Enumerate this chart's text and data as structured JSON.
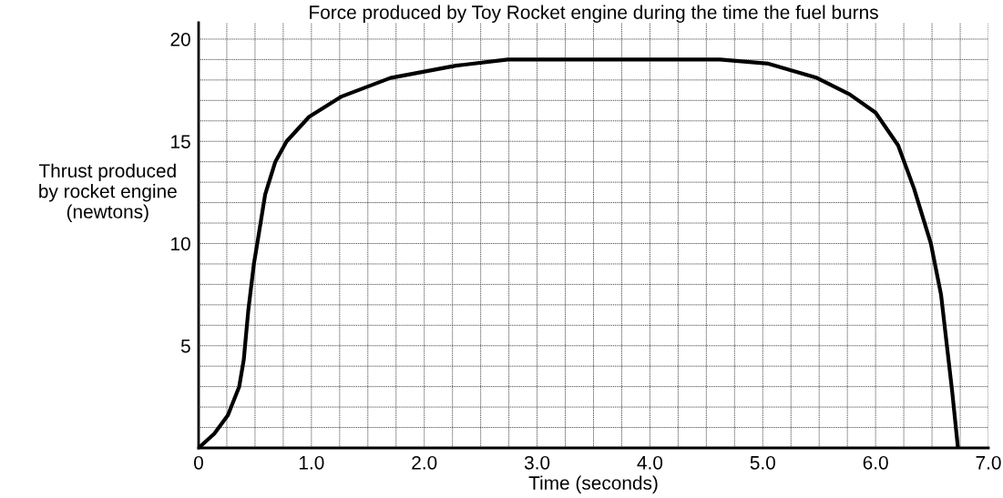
{
  "chart_data": {
    "type": "line",
    "title": "Force produced by Toy Rocket engine during the time the fuel burns",
    "xlabel": "Time (seconds)",
    "ylabel": "Thrust produced\nby rocket engine\n(newtons)",
    "series": [
      {
        "color": "#000000",
        "x": [
          0,
          0.14,
          0.26,
          0.36,
          0.4,
          0.44,
          0.49,
          0.52,
          0.59,
          0.68,
          0.78,
          0.98,
          1.27,
          1.7,
          2.28,
          2.74,
          3.4,
          4.0,
          4.62,
          5.05,
          5.48,
          5.77,
          6.0,
          6.2,
          6.34,
          6.49,
          6.58,
          6.63,
          6.68,
          6.73
        ],
        "values": [
          0,
          0.7,
          1.6,
          3.0,
          4.3,
          6.7,
          9.0,
          10.0,
          12.4,
          14.0,
          15.0,
          16.2,
          17.2,
          18.1,
          18.7,
          19.0,
          19.0,
          19.0,
          19.0,
          18.8,
          18.1,
          17.3,
          16.4,
          14.8,
          12.7,
          10.0,
          7.5,
          5.1,
          2.7,
          0
        ]
      }
    ],
    "xlim": [
      0,
      7
    ],
    "ylim": [
      0,
      20.8
    ],
    "xticks": [
      0,
      {
        "value": 0.25,
        "label": null
      },
      {
        "value": 0.5,
        "label": null
      },
      {
        "value": 0.75,
        "label": null
      },
      {
        "value": 1,
        "label": "1.0"
      },
      {
        "value": 1.25,
        "label": null
      },
      {
        "value": 1.5,
        "label": null
      },
      {
        "value": 1.75,
        "label": null
      },
      {
        "value": 2,
        "label": "2.0"
      },
      {
        "value": 2.25,
        "label": null
      },
      {
        "value": 2.5,
        "label": null
      },
      {
        "value": 2.75,
        "label": null
      },
      {
        "value": 3,
        "label": "3.0"
      },
      {
        "value": 3.25,
        "label": null
      },
      {
        "value": 3.5,
        "label": null
      },
      {
        "value": 3.75,
        "label": null
      },
      {
        "value": 4,
        "label": "4.0"
      },
      {
        "value": 4.25,
        "label": null
      },
      {
        "value": 4.5,
        "label": null
      },
      {
        "value": 4.75,
        "label": null
      },
      {
        "value": 5,
        "label": "5.0"
      },
      {
        "value": 5.25,
        "label": null
      },
      {
        "value": 5.5,
        "label": null
      },
      {
        "value": 5.75,
        "label": null
      },
      {
        "value": 6,
        "label": "6.0"
      },
      {
        "value": 6.25,
        "label": null
      },
      {
        "value": 6.5,
        "label": null
      },
      {
        "value": 6.75,
        "label": null
      },
      {
        "value": 7,
        "label": "7.0"
      }
    ],
    "yticks": [
      {
        "value": 0,
        "label": null
      },
      {
        "value": 1,
        "label": null
      },
      {
        "value": 2,
        "label": null
      },
      {
        "value": 3,
        "label": null
      },
      {
        "value": 4,
        "label": null
      },
      5,
      {
        "value": 6,
        "label": null
      },
      {
        "value": 7,
        "label": null
      },
      {
        "value": 8,
        "label": null
      },
      {
        "value": 9,
        "label": null
      },
      10,
      {
        "value": 11,
        "label": null
      },
      {
        "value": 12,
        "label": null
      },
      {
        "value": 13,
        "label": null
      },
      {
        "value": 14,
        "label": null
      },
      15,
      {
        "value": 16,
        "label": null
      },
      {
        "value": 17,
        "label": null
      },
      {
        "value": 18,
        "label": null
      },
      {
        "value": 19,
        "label": null
      },
      20
    ],
    "grid": true,
    "marker": "none",
    "line_style": "solid",
    "legend": false
  }
}
